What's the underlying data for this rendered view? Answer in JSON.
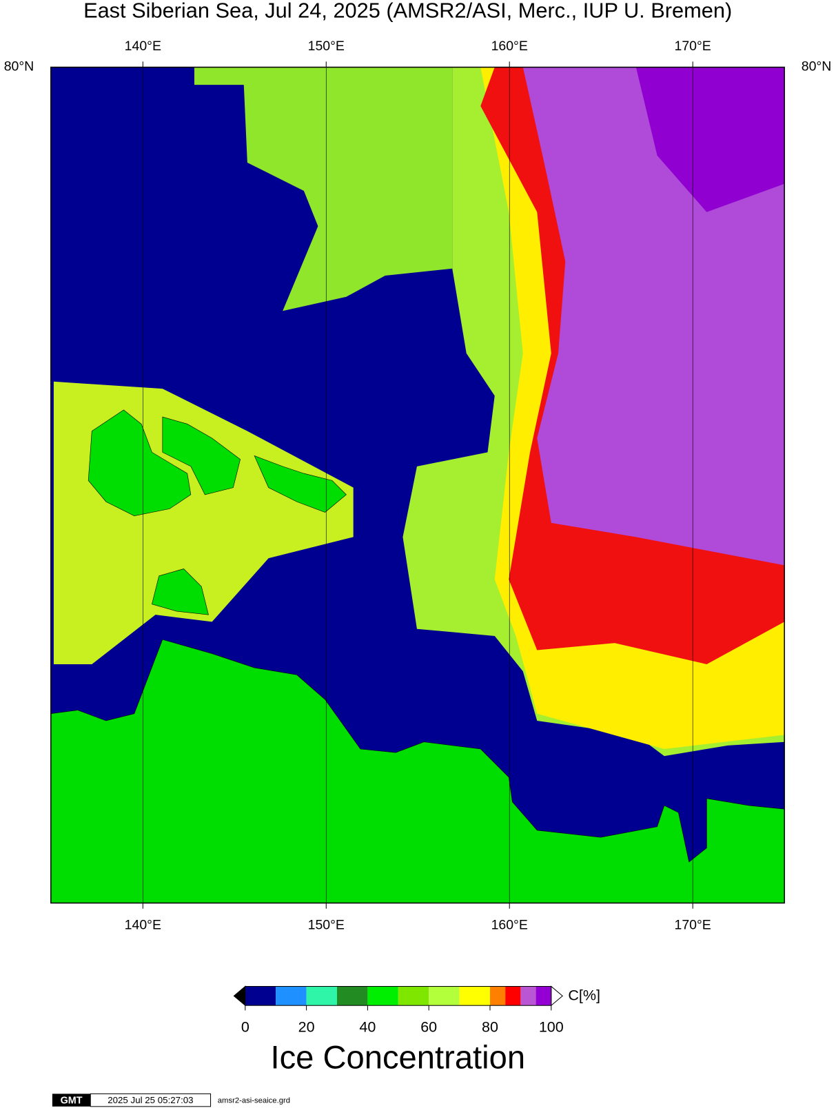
{
  "map": {
    "title": "East Siberian Sea, Jul 24, 2025 (AMSR2/ASI, Merc., IUP U. Bremen)",
    "xlim": [
      135,
      175
    ],
    "lon_ticks": [
      {
        "value": 140,
        "label": "140°E"
      },
      {
        "value": 150,
        "label": "150°E"
      },
      {
        "value": 160,
        "label": "160°E"
      },
      {
        "value": 170,
        "label": "170°E"
      }
    ],
    "lat_label": "80°N"
  },
  "colorbar": {
    "range": [
      0,
      100
    ],
    "ticks": [
      0,
      20,
      40,
      60,
      80,
      100
    ],
    "bins": [
      0,
      10,
      20,
      30,
      40,
      50,
      60,
      70,
      80,
      85,
      90,
      95,
      100
    ],
    "colors": [
      "#000090",
      "#1e90ff",
      "#2ef5a8",
      "#228b22",
      "#00ee00",
      "#7fe600",
      "#b4ff3c",
      "#ffff00",
      "#ff8000",
      "#ff0000",
      "#ba55d3",
      "#9400d3"
    ],
    "unit_label": "C[%]",
    "title": "Ice Concentration"
  },
  "footer": {
    "logo": "GMT",
    "timestamp": "2025 Jul 25 05:27:03",
    "filename": "amsr2-asi-seaice.grd"
  }
}
